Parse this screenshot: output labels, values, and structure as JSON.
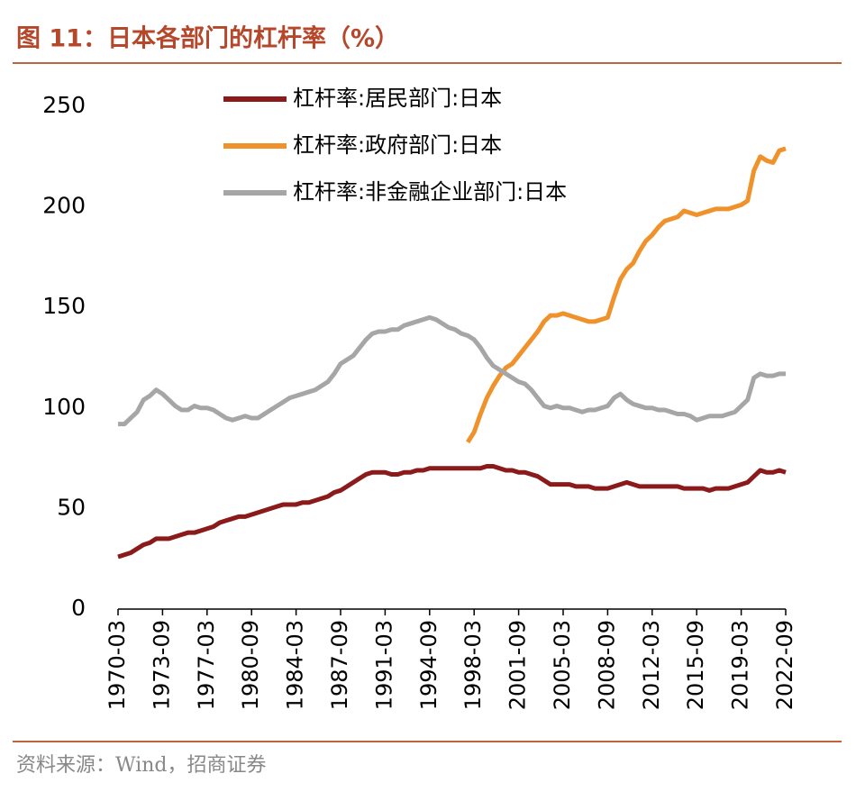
{
  "chart_data": {
    "type": "line",
    "title": "图 11：日本各部门的杠杆率（%）",
    "source": "资料来源：Wind，招商证券",
    "categories": [
      "1970-03",
      null,
      null,
      null,
      null,
      null,
      null,
      "1973-09",
      null,
      null,
      null,
      null,
      null,
      null,
      "1977-03",
      null,
      null,
      null,
      null,
      null,
      null,
      "1980-09",
      null,
      null,
      null,
      null,
      null,
      null,
      "1984-03",
      null,
      null,
      null,
      null,
      null,
      null,
      "1987-09",
      null,
      null,
      null,
      null,
      null,
      null,
      "1991-03",
      null,
      null,
      null,
      null,
      null,
      null,
      "1994-09",
      null,
      null,
      null,
      null,
      null,
      null,
      "1998-03",
      null,
      null,
      null,
      null,
      null,
      null,
      "2001-09",
      null,
      null,
      null,
      null,
      null,
      null,
      "2005-03",
      null,
      null,
      null,
      null,
      null,
      null,
      "2008-09",
      null,
      null,
      null,
      null,
      null,
      null,
      "2012-03",
      null,
      null,
      null,
      null,
      null,
      null,
      "2015-09",
      null,
      null,
      null,
      null,
      null,
      null,
      "2019-03",
      null,
      null,
      null,
      null,
      null,
      null,
      "2022-09"
    ],
    "series": [
      {
        "name": "杠杆率:居民部门:日本",
        "color": "#8b1a1a",
        "values": [
          26,
          27,
          28,
          30,
          32,
          33,
          35,
          35,
          35,
          36,
          37,
          38,
          38,
          39,
          40,
          41,
          43,
          44,
          45,
          46,
          46,
          47,
          48,
          49,
          50,
          51,
          52,
          52,
          52,
          53,
          53,
          54,
          55,
          56,
          58,
          59,
          61,
          63,
          65,
          67,
          68,
          68,
          68,
          67,
          67,
          68,
          68,
          69,
          69,
          70,
          70,
          70,
          70,
          70,
          70,
          70,
          70,
          70,
          71,
          71,
          70,
          69,
          69,
          68,
          68,
          67,
          66,
          64,
          62,
          62,
          62,
          62,
          61,
          61,
          61,
          60,
          60,
          60,
          61,
          62,
          63,
          62,
          61,
          61,
          61,
          61,
          61,
          61,
          61,
          60,
          60,
          60,
          60,
          59,
          60,
          60,
          60,
          61,
          62,
          63,
          66,
          69,
          68,
          68,
          69,
          68
        ]
      },
      {
        "name": "杠杆率:政府部门:日本",
        "color": "#f0922b",
        "values": [
          null,
          null,
          null,
          null,
          null,
          null,
          null,
          null,
          null,
          null,
          null,
          null,
          null,
          null,
          null,
          null,
          null,
          null,
          null,
          null,
          null,
          null,
          null,
          null,
          null,
          null,
          null,
          null,
          null,
          null,
          null,
          null,
          null,
          null,
          null,
          null,
          null,
          null,
          null,
          null,
          null,
          null,
          null,
          null,
          null,
          null,
          null,
          null,
          null,
          null,
          null,
          null,
          null,
          null,
          null,
          83,
          88,
          97,
          105,
          111,
          116,
          120,
          122,
          126,
          130,
          134,
          138,
          143,
          146,
          146,
          147,
          146,
          145,
          144,
          143,
          143,
          144,
          145,
          155,
          164,
          169,
          172,
          178,
          183,
          186,
          190,
          193,
          194,
          195,
          198,
          197,
          196,
          197,
          198,
          199,
          199,
          199,
          200,
          201,
          203,
          218,
          225,
          223,
          222,
          228,
          229
        ]
      },
      {
        "name": "杠杆率:非金融企业部门:日本",
        "color": "#a6a6a6",
        "values": [
          92,
          92,
          95,
          98,
          104,
          106,
          109,
          107,
          104,
          101,
          99,
          99,
          101,
          100,
          100,
          99,
          97,
          95,
          94,
          95,
          96,
          95,
          95,
          97,
          99,
          101,
          103,
          105,
          106,
          107,
          108,
          109,
          111,
          113,
          117,
          122,
          124,
          126,
          130,
          134,
          137,
          138,
          138,
          139,
          139,
          141,
          142,
          143,
          144,
          145,
          144,
          142,
          140,
          139,
          137,
          136,
          134,
          130,
          125,
          121,
          119,
          117,
          115,
          113,
          112,
          109,
          105,
          101,
          100,
          101,
          100,
          100,
          99,
          98,
          99,
          99,
          100,
          101,
          105,
          107,
          104,
          102,
          101,
          100,
          100,
          99,
          99,
          98,
          97,
          97,
          96,
          94,
          95,
          96,
          96,
          96,
          97,
          98,
          101,
          104,
          115,
          117,
          116,
          116,
          117,
          117
        ]
      }
    ],
    "ylim": [
      0,
      250
    ],
    "yticks": [
      0,
      50,
      100,
      150,
      200,
      250
    ],
    "grid": false,
    "legend": "upper left"
  }
}
